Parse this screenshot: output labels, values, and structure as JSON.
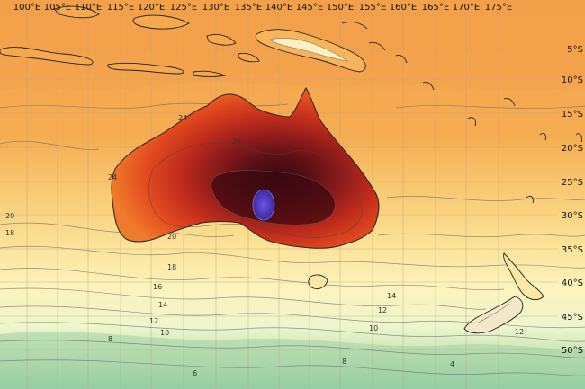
{
  "longitude_labels": [
    "100°E",
    "105°E",
    "110°E",
    "115°E",
    "120°E",
    "125°E",
    "130°E",
    "135°E",
    "140°E",
    "145°E",
    "150°E",
    "155°E",
    "160°E",
    "165°E",
    "170°E",
    "175°E"
  ],
  "latitude_labels": [
    "5°S",
    "10°S",
    "15°S",
    "20°S",
    "25°S",
    "30°S",
    "35°S",
    "40°S",
    "45°S",
    "50°S"
  ],
  "contour_labels": [
    "24",
    "26",
    "24",
    "20",
    "18",
    "20",
    "18",
    "16",
    "14",
    "12",
    "10",
    "8",
    "6",
    "14",
    "12",
    "10",
    "12",
    "8",
    "4"
  ],
  "colors": {
    "sea_hot": "#f3a04a",
    "sea_orange": "#f7b45a",
    "sea_light": "#fbdc8a",
    "sea_pale": "#fdf3b8",
    "sea_cool": "#e9f4cf",
    "sea_green": "#b9ddb0",
    "sea_teal": "#8cc8a0",
    "land_orange": "#f0752a",
    "land_red": "#d63a1c",
    "land_crimson": "#a41f1a",
    "land_maroon": "#6a1318",
    "land_darkest": "#3a0810",
    "land_purple": "#5a3fc8",
    "grid_line": "#b8a27a",
    "coast_line": "#222222",
    "contour_line": "#6e6e6e"
  }
}
